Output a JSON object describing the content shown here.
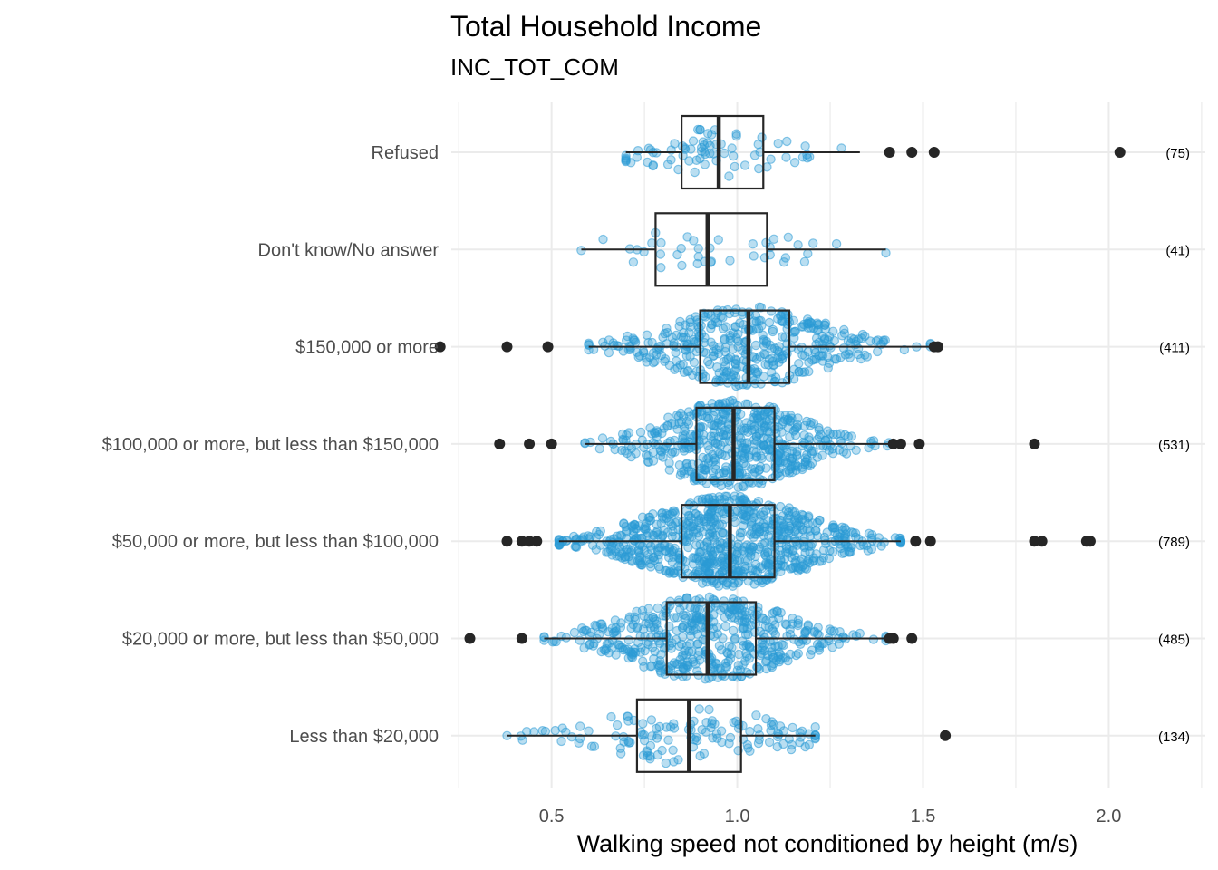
{
  "chart_data": {
    "type": "boxplot",
    "title": "Total Household Income",
    "subtitle": "INC_TOT_COM",
    "xlabel": "Walking speed not conditioned by height (m/s)",
    "xlim": [
      0.23,
      2.26
    ],
    "xticks": [
      0.5,
      1.0,
      1.5,
      2.0
    ],
    "xtick_labels": [
      "0.5",
      "1.0",
      "1.5",
      "2.0"
    ],
    "xgrid_minor": [
      0.25,
      0.75,
      1.25,
      1.75,
      2.25
    ],
    "grid": true,
    "point_color": "#2b9ad6",
    "box_color": "#262626",
    "categories": [
      {
        "label": "Refused",
        "count_label": "(75)",
        "n": 75,
        "q1": 0.85,
        "median": 0.95,
        "q3": 1.07,
        "whisker_low": 0.7,
        "whisker_high": 1.33,
        "outliers": [
          1.41,
          1.47,
          1.53,
          2.03
        ]
      },
      {
        "label": "Don't know/No answer",
        "count_label": "(41)",
        "n": 41,
        "q1": 0.78,
        "median": 0.92,
        "q3": 1.08,
        "whisker_low": 0.58,
        "whisker_high": 1.4,
        "outliers": []
      },
      {
        "label": "$150,000 or more",
        "count_label": "(411)",
        "n": 411,
        "q1": 0.9,
        "median": 1.03,
        "q3": 1.14,
        "whisker_low": 0.6,
        "whisker_high": 1.52,
        "outliers": [
          0.2,
          0.38,
          0.49,
          1.53,
          1.54
        ]
      },
      {
        "label": "$100,000 or more, but less than $150,000",
        "count_label": "(531)",
        "n": 531,
        "q1": 0.89,
        "median": 0.99,
        "q3": 1.1,
        "whisker_low": 0.59,
        "whisker_high": 1.41,
        "outliers": [
          0.36,
          0.44,
          0.5,
          1.42,
          1.44,
          1.49,
          1.8
        ]
      },
      {
        "label": "$50,000 or more, but less than $100,000",
        "count_label": "(789)",
        "n": 789,
        "q1": 0.85,
        "median": 0.98,
        "q3": 1.1,
        "whisker_low": 0.52,
        "whisker_high": 1.44,
        "outliers": [
          0.38,
          0.42,
          0.44,
          0.46,
          1.48,
          1.52,
          1.8,
          1.82,
          1.94,
          1.95
        ]
      },
      {
        "label": "$20,000 or more, but less than $50,000",
        "count_label": "(485)",
        "n": 485,
        "q1": 0.81,
        "median": 0.92,
        "q3": 1.05,
        "whisker_low": 0.48,
        "whisker_high": 1.4,
        "outliers": [
          0.28,
          0.42,
          1.41,
          1.42,
          1.47
        ]
      },
      {
        "label": "Less than $20,000",
        "count_label": "(134)",
        "n": 134,
        "q1": 0.73,
        "median": 0.87,
        "q3": 1.01,
        "whisker_low": 0.38,
        "whisker_high": 1.21,
        "outliers": [
          1.56
        ]
      }
    ]
  }
}
